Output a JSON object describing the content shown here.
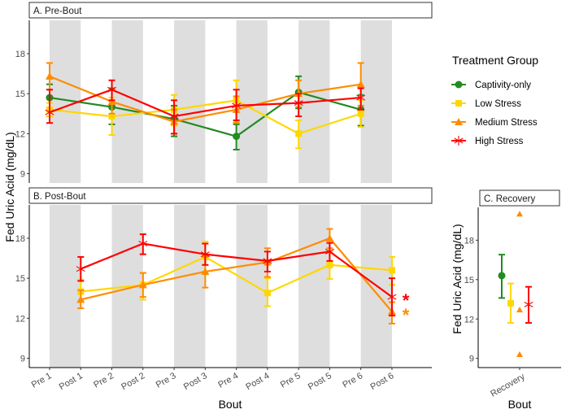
{
  "y_axis_label": "Fed Uric Acid (mg/dL)",
  "x_axis_label": "Bout",
  "legend": {
    "title": "Treatment Group",
    "items": [
      {
        "name": "Captivity-only",
        "color": "#228B22",
        "marker": "circle"
      },
      {
        "name": "Low Stress",
        "color": "#FFD700",
        "marker": "square"
      },
      {
        "name": "Medium Stress",
        "color": "#FF8C00",
        "marker": "triangle"
      },
      {
        "name": "High Stress",
        "color": "#FF0000",
        "marker": "asterisk"
      }
    ]
  },
  "chart_data": [
    {
      "type": "line",
      "title": "A. Pre-Bout",
      "ylabel": "Fed Uric Acid (mg/dL)",
      "ylim": [
        8.3,
        20.5
      ],
      "yticks": [
        9,
        12,
        15,
        18
      ],
      "categories": [
        "Pre 1",
        "Post 1",
        "Pre 2",
        "Post 2",
        "Pre 3",
        "Post 3",
        "Pre 4",
        "Post 4",
        "Pre 5",
        "Post 5",
        "Pre 6",
        "Post 6"
      ],
      "shaded_bands": [
        [
          0,
          1
        ],
        [
          2,
          3
        ],
        [
          4,
          5
        ],
        [
          6,
          7
        ],
        [
          8,
          9
        ],
        [
          10,
          11
        ]
      ],
      "series": [
        {
          "name": "Captivity-only",
          "x": [
            0,
            2,
            4,
            6,
            8,
            10
          ],
          "values": [
            14.7,
            14.0,
            13.1,
            11.8,
            15.1,
            13.8
          ],
          "lower": [
            13.8,
            12.7,
            11.8,
            10.8,
            13.9,
            12.6
          ],
          "upper": [
            15.7,
            15.4,
            14.1,
            12.7,
            16.3,
            14.9
          ]
        },
        {
          "name": "Low Stress",
          "x": [
            0,
            2,
            4,
            6,
            8,
            10
          ],
          "values": [
            13.8,
            13.3,
            13.8,
            14.5,
            12.0,
            13.5
          ],
          "lower": [
            13.3,
            11.9,
            12.6,
            12.9,
            10.9,
            12.5
          ],
          "upper": [
            14.3,
            14.7,
            14.9,
            16.0,
            13.0,
            14.5
          ]
        },
        {
          "name": "Medium Stress",
          "x": [
            0,
            2,
            4,
            6,
            8,
            10
          ],
          "values": [
            16.3,
            14.4,
            12.9,
            13.8,
            15.0,
            15.7
          ],
          "lower": [
            15.3,
            13.5,
            12.0,
            12.8,
            14.0,
            14.1
          ],
          "upper": [
            17.3,
            15.3,
            13.8,
            14.8,
            16.0,
            17.3
          ]
        },
        {
          "name": "High Stress",
          "x": [
            0,
            2,
            4,
            6,
            8,
            10
          ],
          "values": [
            13.6,
            15.3,
            13.3,
            14.1,
            14.3,
            14.7
          ],
          "lower": [
            12.8,
            14.5,
            12.0,
            13.0,
            13.3,
            13.8
          ],
          "upper": [
            15.3,
            16.0,
            14.5,
            15.3,
            15.0,
            15.4
          ]
        }
      ],
      "annotations": []
    },
    {
      "type": "line",
      "title": "B. Post-Bout",
      "ylabel": "Fed Uric Acid (mg/dL)",
      "xlabel": "Bout",
      "ylim": [
        8.3,
        20.5
      ],
      "yticks": [
        9,
        12,
        15,
        18
      ],
      "categories": [
        "Pre 1",
        "Post 1",
        "Pre 2",
        "Post 2",
        "Pre 3",
        "Post 3",
        "Pre 4",
        "Post 4",
        "Pre 5",
        "Post 5",
        "Pre 6",
        "Post 6"
      ],
      "shaded_bands": [
        [
          0,
          1
        ],
        [
          2,
          3
        ],
        [
          4,
          5
        ],
        [
          6,
          7
        ],
        [
          8,
          9
        ],
        [
          10,
          11
        ]
      ],
      "series": [
        {
          "name": "Low Stress",
          "x": [
            1,
            3,
            5,
            7,
            9,
            11
          ],
          "values": [
            14.0,
            14.5,
            16.6,
            13.9,
            16.0,
            15.6
          ],
          "lower": [
            13.3,
            13.4,
            15.5,
            12.9,
            14.95,
            14.5
          ],
          "upper": [
            14.9,
            15.4,
            17.75,
            15.0,
            17.0,
            16.6
          ]
        },
        {
          "name": "Medium Stress",
          "x": [
            1,
            3,
            5,
            7,
            9,
            11
          ],
          "values": [
            13.4,
            14.5,
            15.5,
            16.2,
            18.0,
            12.5
          ],
          "lower": [
            12.75,
            13.6,
            14.3,
            15.1,
            17.25,
            11.6
          ],
          "upper": [
            14.1,
            15.4,
            16.6,
            17.25,
            18.7,
            13.2
          ]
        },
        {
          "name": "High Stress",
          "x": [
            1,
            3,
            5,
            7,
            9,
            11
          ],
          "values": [
            15.7,
            17.6,
            16.8,
            16.3,
            17.0,
            13.6
          ],
          "lower": [
            14.8,
            16.8,
            16.0,
            15.5,
            16.3,
            12.2
          ],
          "upper": [
            16.6,
            18.3,
            17.6,
            17.0,
            17.65,
            15.0
          ]
        }
      ],
      "annotations": [
        {
          "text": "*",
          "x": 11,
          "y": 13.6,
          "color": "#FF0000"
        },
        {
          "text": "*",
          "x": 11,
          "y": 12.5,
          "color": "#FF8C00"
        }
      ]
    },
    {
      "type": "scatter",
      "title": "C. Recovery",
      "ylabel": "Fed Uric Acid (mg/dL)",
      "xlabel": "Bout",
      "ylim": [
        8.3,
        20.5
      ],
      "yticks": [
        9,
        12,
        15,
        18
      ],
      "categories": [
        "Recovery"
      ],
      "series": [
        {
          "name": "Captivity-only",
          "values": [
            15.3
          ],
          "lower": [
            13.6
          ],
          "upper": [
            16.9
          ]
        },
        {
          "name": "Low Stress",
          "values": [
            13.2
          ],
          "lower": [
            11.7
          ],
          "upper": [
            14.7
          ]
        },
        {
          "name": "Medium Stress",
          "points": [
            20.0,
            12.7,
            9.3
          ]
        },
        {
          "name": "High Stress",
          "values": [
            13.1
          ],
          "lower": [
            11.7
          ],
          "upper": [
            14.45
          ]
        }
      ]
    }
  ]
}
